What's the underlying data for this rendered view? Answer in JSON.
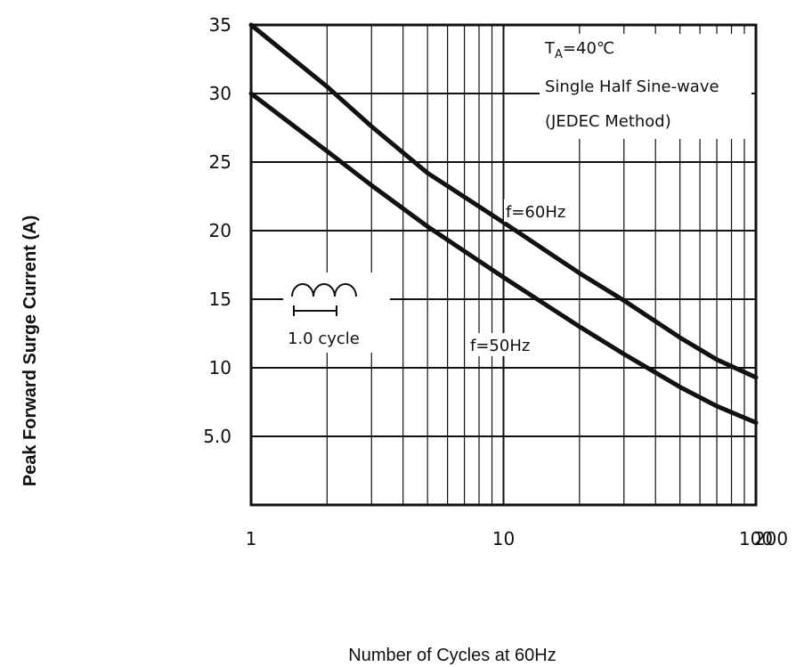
{
  "chart_data": {
    "type": "line",
    "xlabel": "Number of Cycles at 60Hz",
    "ylabel": "Peak Forward Surge Current (A)",
    "x_scale": "log",
    "xlim": [
      1,
      100
    ],
    "ylim": [
      0,
      35
    ],
    "x_ticks": [
      {
        "value": 1,
        "label": "1"
      },
      {
        "value": 10,
        "label": "10"
      },
      {
        "value": 100,
        "label": "100"
      },
      {
        "value": 200,
        "label": "200"
      }
    ],
    "y_ticks": [
      {
        "value": 35,
        "label": "35"
      },
      {
        "value": 30,
        "label": "30"
      },
      {
        "value": 25,
        "label": "25"
      },
      {
        "value": 20,
        "label": "20"
      },
      {
        "value": 15,
        "label": "15"
      },
      {
        "value": 10,
        "label": "10"
      },
      {
        "value": 5,
        "label": "5.0"
      }
    ],
    "grid": true,
    "series": [
      {
        "name": "f=60Hz",
        "x": [
          1,
          2,
          3,
          5,
          10,
          20,
          30,
          50,
          70,
          100
        ],
        "y": [
          35,
          30.5,
          27.6,
          24.2,
          20.6,
          16.9,
          14.9,
          12.2,
          10.6,
          9.3
        ]
      },
      {
        "name": "f=50Hz",
        "x": [
          1,
          2,
          3,
          5,
          10,
          20,
          30,
          50,
          70,
          100
        ],
        "y": [
          30,
          25.8,
          23.3,
          20.3,
          16.6,
          13.0,
          11.0,
          8.6,
          7.2,
          6.0
        ]
      }
    ],
    "annotations": {
      "condition_ta_prefix": "T",
      "condition_ta_sub": "A",
      "condition_ta_suffix": "=40℃",
      "condition_line2": "Single Half Sine-wave",
      "condition_line3": "(JEDEC Method)",
      "cycle_label": "1.0 cycle"
    },
    "colors": {
      "curve": "#111111",
      "grid": "#111111",
      "background": "#ffffff"
    }
  }
}
